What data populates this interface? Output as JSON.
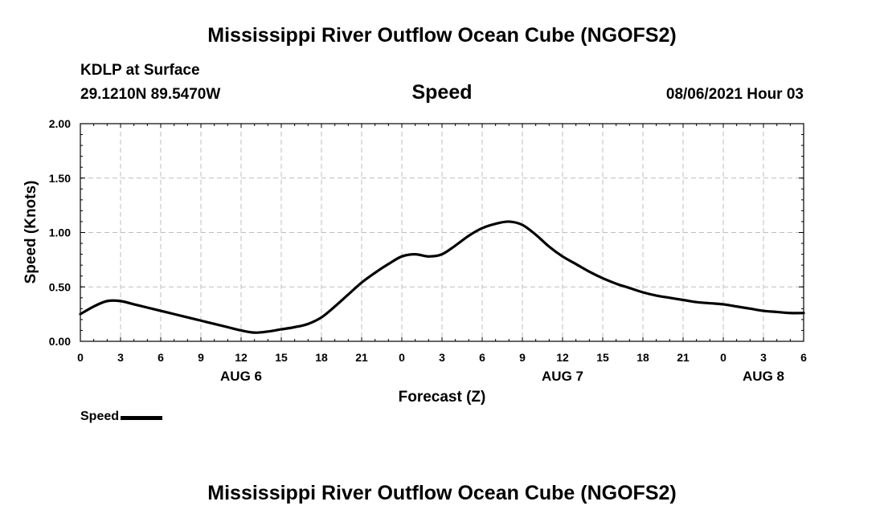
{
  "header": {
    "title": "Mississippi River Outflow Ocean Cube (NGOFS2)",
    "station": "KDLP at Surface",
    "coords": "29.1210N  89.5470W",
    "variable": "Speed",
    "datetime": "08/06/2021 Hour 03"
  },
  "footer": {
    "title": "Mississippi River Outflow Ocean Cube (NGOFS2)"
  },
  "legend": {
    "label": "Speed"
  },
  "chart_data": {
    "type": "line",
    "title": "Speed",
    "xlabel": "Forecast (Z)",
    "ylabel": "Speed (Knots)",
    "xlim": [
      0,
      54
    ],
    "ylim": [
      0,
      2.0
    ],
    "grid": true,
    "legend_position": "bottom-left",
    "x_tick_labels": [
      "0",
      "3",
      "6",
      "9",
      "12",
      "15",
      "18",
      "21",
      "0",
      "3",
      "6",
      "9",
      "12",
      "15",
      "18",
      "21",
      "0",
      "3",
      "6"
    ],
    "y_tick_labels": [
      "0.00",
      "0.50",
      "1.00",
      "1.50",
      "2.00"
    ],
    "date_labels": [
      {
        "hour": 12,
        "label": "AUG 6"
      },
      {
        "hour": 36,
        "label": "AUG 7"
      },
      {
        "hour": 51,
        "label": "AUG 8"
      }
    ],
    "series": [
      {
        "name": "Speed",
        "color": "#000000",
        "x": [
          0,
          1,
          2,
          3,
          4,
          5,
          6,
          7,
          8,
          9,
          10,
          11,
          12,
          13,
          14,
          15,
          16,
          17,
          18,
          19,
          20,
          21,
          22,
          23,
          24,
          25,
          26,
          27,
          28,
          29,
          30,
          31,
          32,
          33,
          34,
          35,
          36,
          37,
          38,
          39,
          40,
          41,
          42,
          43,
          44,
          45,
          46,
          47,
          48,
          49,
          50,
          51,
          52,
          53,
          54
        ],
        "y": [
          0.25,
          0.32,
          0.37,
          0.37,
          0.34,
          0.31,
          0.28,
          0.25,
          0.22,
          0.19,
          0.16,
          0.13,
          0.1,
          0.08,
          0.09,
          0.11,
          0.13,
          0.16,
          0.22,
          0.32,
          0.43,
          0.54,
          0.63,
          0.71,
          0.78,
          0.8,
          0.78,
          0.8,
          0.88,
          0.97,
          1.04,
          1.08,
          1.1,
          1.07,
          0.98,
          0.87,
          0.78,
          0.71,
          0.64,
          0.58,
          0.53,
          0.49,
          0.45,
          0.42,
          0.4,
          0.38,
          0.36,
          0.35,
          0.34,
          0.32,
          0.3,
          0.28,
          0.27,
          0.26,
          0.26
        ]
      }
    ]
  }
}
